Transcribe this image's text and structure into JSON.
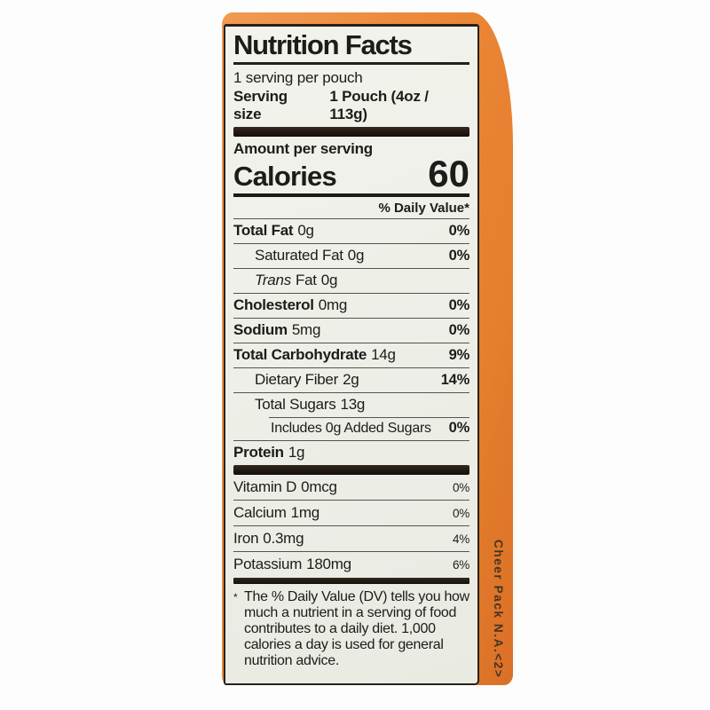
{
  "photo": {
    "background_color": "#fdfdfd"
  },
  "package": {
    "pouch_color": "#ec8a3c",
    "edge_text": "Cheer Pack N.A.<2>"
  },
  "label": {
    "background_color": "#edefe8",
    "text_color": "#1c1c1a",
    "title": "Nutrition Facts",
    "servings_per_container": "1 serving per pouch",
    "serving_size_label": "Serving size",
    "serving_size_value": "1 Pouch (4oz / 113g)",
    "amount_per_serving": "Amount per serving",
    "calories_label": "Calories",
    "calories_value": "60",
    "daily_value_header": "% Daily Value*",
    "rows": [
      {
        "name": "Total Fat",
        "amount": "0g",
        "dv": "0%"
      },
      {
        "name": "Saturated Fat",
        "amount": "0g",
        "dv": "0%"
      },
      {
        "name_italic": "Trans",
        "name": "Fat",
        "amount": "0g",
        "dv": ""
      },
      {
        "name": "Cholesterol",
        "amount": "0mg",
        "dv": "0%"
      },
      {
        "name": "Sodium",
        "amount": "5mg",
        "dv": "0%"
      },
      {
        "name": "Total Carbohydrate",
        "amount": "14g",
        "dv": "9%"
      },
      {
        "name": "Dietary Fiber",
        "amount": "2g",
        "dv": "14%"
      },
      {
        "name": "Total Sugars",
        "amount": "13g",
        "dv": ""
      },
      {
        "name": "Includes 0g Added Sugars",
        "amount": "",
        "dv": "0%"
      },
      {
        "name": "Protein",
        "amount": "1g",
        "dv": ""
      }
    ],
    "vitamins": [
      {
        "name": "Vitamin D",
        "amount": "0mcg",
        "dv": "0%"
      },
      {
        "name": "Calcium",
        "amount": "1mg",
        "dv": "0%"
      },
      {
        "name": "Iron",
        "amount": "0.3mg",
        "dv": "4%"
      },
      {
        "name": "Potassium",
        "amount": "180mg",
        "dv": "6%"
      }
    ],
    "footnote_marker": "*",
    "footnote": "The % Daily Value (DV) tells you how much a nutrient in a serving of food contributes to a daily diet. 1,000 calories a day is used for general nutrition advice."
  }
}
